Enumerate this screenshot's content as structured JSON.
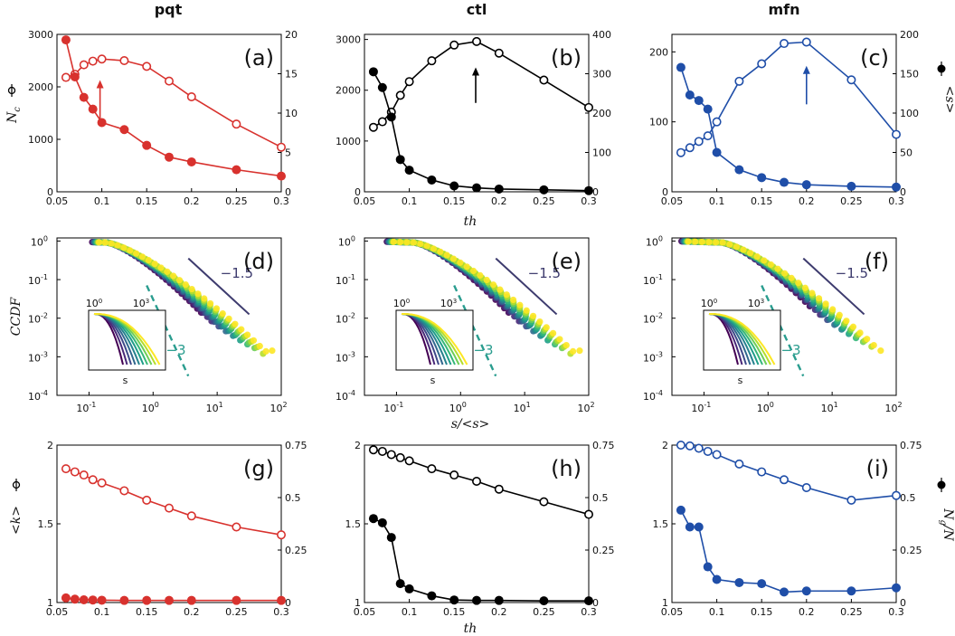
{
  "columns": [
    {
      "title": "pqt",
      "color": "#d8322e"
    },
    {
      "title": "ctl",
      "color": "#000000"
    },
    {
      "title": "mfn",
      "color": "#1f4ea8"
    }
  ],
  "axis_text": {
    "nc_label": "N",
    "nc_sub": "c",
    "s_label": "<s>",
    "th_label": "th",
    "ccdf_label": "CCDF",
    "sratio_label": "s/<s>",
    "k_label": "<k>",
    "ng_label": "N",
    "ng_sub": "g",
    "ng_tail": "/N",
    "inset_x_label": "s"
  },
  "annotations": {
    "slope_a": "−1.5",
    "slope_b": "−3"
  },
  "viridis": [
    "#440154",
    "#482878",
    "#3e4989",
    "#31688e",
    "#26828e",
    "#1f9e89",
    "#35b779",
    "#6ece58",
    "#b5de2b",
    "#fde725"
  ],
  "chart_data": [
    {
      "panel": "(a)",
      "type": "line",
      "xlim": [
        0.05,
        0.3
      ],
      "xticks": [
        "0.05",
        "0.1",
        "0.15",
        "0.2",
        "0.25",
        "0.3"
      ],
      "ylim_left": [
        0,
        3000
      ],
      "yticks_left": [
        "0",
        "1000",
        "2000",
        "3000"
      ],
      "ylim_right": [
        0,
        20
      ],
      "yticks_right": [
        "0",
        "5",
        "10",
        "15",
        "20"
      ],
      "x": [
        0.06,
        0.07,
        0.08,
        0.09,
        0.1,
        0.125,
        0.15,
        0.175,
        0.2,
        0.25,
        0.3
      ],
      "series": [
        {
          "name": "N_c",
          "axis": "left",
          "marker": "open",
          "values": [
            2180,
            2240,
            2420,
            2490,
            2530,
            2500,
            2390,
            2110,
            1810,
            1290,
            850
          ]
        },
        {
          "name": "<s>",
          "axis": "right",
          "marker": "filled",
          "values": [
            19.3,
            14.6,
            12.0,
            10.5,
            8.8,
            7.9,
            5.9,
            4.4,
            3.8,
            2.8,
            2.0
          ]
        }
      ],
      "arrow_x": 0.098,
      "arrow_y": [
        1330,
        2130
      ]
    },
    {
      "panel": "(b)",
      "type": "line",
      "xlim": [
        0.05,
        0.3
      ],
      "xticks": [
        "0.05",
        "0.1",
        "0.15",
        "0.2",
        "0.25",
        "0.3"
      ],
      "ylim_left": [
        0,
        3100
      ],
      "yticks_left": [
        "0",
        "1000",
        "2000",
        "3000"
      ],
      "ylim_right": [
        0,
        400
      ],
      "yticks_right": [
        "0",
        "100",
        "200",
        "300",
        "400"
      ],
      "x": [
        0.06,
        0.07,
        0.08,
        0.09,
        0.1,
        0.125,
        0.15,
        0.175,
        0.2,
        0.25,
        0.3
      ],
      "series": [
        {
          "name": "N_c",
          "axis": "left",
          "marker": "open",
          "values": [
            1270,
            1380,
            1570,
            1900,
            2170,
            2580,
            2890,
            2960,
            2730,
            2200,
            1660
          ]
        },
        {
          "name": "<s>",
          "axis": "right",
          "marker": "filled",
          "values": [
            305,
            265,
            190,
            82,
            55,
            30,
            15,
            10,
            7,
            5,
            3
          ]
        }
      ],
      "arrow_x": 0.174,
      "arrow_y": [
        1750,
        2450
      ]
    },
    {
      "panel": "(c)",
      "type": "line",
      "xlim": [
        0.05,
        0.3
      ],
      "xticks": [
        "0.05",
        "0.1",
        "0.15",
        "0.2",
        "0.25",
        "0.3"
      ],
      "ylim_left": [
        0,
        225
      ],
      "yticks_left": [
        "0",
        "100",
        "200"
      ],
      "ylim_right": [
        0,
        200
      ],
      "yticks_right": [
        "0",
        "50",
        "100",
        "150",
        "200"
      ],
      "x": [
        0.06,
        0.07,
        0.08,
        0.09,
        0.1,
        0.125,
        0.15,
        0.175,
        0.2,
        0.25,
        0.3
      ],
      "series": [
        {
          "name": "N_c",
          "axis": "left",
          "marker": "open",
          "values": [
            56,
            63,
            72,
            80,
            100,
            158,
            183,
            212,
            214,
            160,
            82
          ]
        },
        {
          "name": "<s>",
          "axis": "right",
          "marker": "filled",
          "values": [
            158,
            123,
            116,
            105,
            50,
            28,
            18,
            12,
            9,
            7,
            6
          ]
        }
      ],
      "arrow_x": 0.2,
      "arrow_y": [
        125,
        180
      ]
    },
    {
      "panel": "(d)",
      "type": "scatter",
      "xscale": "log",
      "yscale": "log",
      "xticks": [
        "10",
        "10",
        "10",
        "10"
      ],
      "xexp": [
        "-1",
        "0",
        "1",
        "2"
      ],
      "yticks": [
        "10",
        "10",
        "10",
        "10",
        "10"
      ],
      "yexp": [
        "0",
        "-1",
        "-2",
        "-3",
        "-4"
      ],
      "slope_b_label": "−3",
      "slope_a_label": "−1.5",
      "inset_ticks": [
        "10",
        "10"
      ],
      "inset_exp": [
        "0",
        "3"
      ]
    },
    {
      "panel": "(e)",
      "type": "scatter",
      "xscale": "log",
      "yscale": "log",
      "xticks": [
        "10",
        "10",
        "10",
        "10"
      ],
      "xexp": [
        "-1",
        "0",
        "1",
        "2"
      ],
      "yticks": [
        "10",
        "10",
        "10",
        "10",
        "10"
      ],
      "yexp": [
        "0",
        "-1",
        "-2",
        "-3",
        "-4"
      ],
      "slope_b_label": "−3",
      "slope_a_label": "−1.5",
      "inset_ticks": [
        "10",
        "10"
      ],
      "inset_exp": [
        "0",
        "3"
      ]
    },
    {
      "panel": "(f)",
      "type": "scatter",
      "xscale": "log",
      "yscale": "log",
      "xticks": [
        "10",
        "10",
        "10",
        "10"
      ],
      "xexp": [
        "-1",
        "0",
        "1",
        "2"
      ],
      "yticks": [
        "10",
        "10",
        "10",
        "10",
        "10"
      ],
      "yexp": [
        "0",
        "-1",
        "-2",
        "-3",
        "-4"
      ],
      "slope_b_label": "−3",
      "slope_a_label": "−1.5",
      "inset_ticks": [
        "10",
        "10"
      ],
      "inset_exp": [
        "0",
        "3"
      ]
    },
    {
      "panel": "(g)",
      "type": "line",
      "xlim": [
        0.05,
        0.3
      ],
      "xticks": [
        "0.05",
        "0.1",
        "0.15",
        "0.2",
        "0.25",
        "0.3"
      ],
      "ylim_left": [
        1,
        2
      ],
      "yticks_left": [
        "1",
        "1.5",
        "2"
      ],
      "ylim_right": [
        0,
        0.75
      ],
      "yticks_right": [
        "0",
        "0.25",
        "0.5",
        "0.75"
      ],
      "x": [
        0.06,
        0.07,
        0.08,
        0.09,
        0.1,
        0.125,
        0.15,
        0.175,
        0.2,
        0.25,
        0.3
      ],
      "series": [
        {
          "name": "<k>",
          "axis": "left",
          "marker": "open",
          "values": [
            1.85,
            1.83,
            1.81,
            1.78,
            1.76,
            1.71,
            1.65,
            1.6,
            1.55,
            1.48,
            1.43
          ]
        },
        {
          "name": "N_g/N",
          "axis": "right",
          "marker": "filled",
          "values": [
            0.022,
            0.016,
            0.013,
            0.012,
            0.011,
            0.01,
            0.01,
            0.01,
            0.01,
            0.01,
            0.01
          ]
        }
      ]
    },
    {
      "panel": "(h)",
      "type": "line",
      "xlim": [
        0.05,
        0.3
      ],
      "xticks": [
        "0.05",
        "0.1",
        "0.15",
        "0.2",
        "0.25",
        "0.3"
      ],
      "ylim_left": [
        1,
        2
      ],
      "yticks_left": [
        "1",
        "1.5",
        "2"
      ],
      "ylim_right": [
        0,
        0.75
      ],
      "yticks_right": [
        "0",
        "0.25",
        "0.5",
        "0.75"
      ],
      "x": [
        0.06,
        0.07,
        0.08,
        0.09,
        0.1,
        0.125,
        0.15,
        0.175,
        0.2,
        0.25,
        0.3
      ],
      "series": [
        {
          "name": "<k>",
          "axis": "left",
          "marker": "open",
          "values": [
            1.97,
            1.96,
            1.94,
            1.92,
            1.9,
            1.85,
            1.81,
            1.77,
            1.72,
            1.64,
            1.56
          ]
        },
        {
          "name": "N_g/N",
          "axis": "right",
          "marker": "filled",
          "values": [
            0.4,
            0.38,
            0.31,
            0.09,
            0.065,
            0.032,
            0.012,
            0.01,
            0.01,
            0.008,
            0.008
          ]
        }
      ]
    },
    {
      "panel": "(i)",
      "type": "line",
      "xlim": [
        0.05,
        0.3
      ],
      "xticks": [
        "0.05",
        "0.1",
        "0.15",
        "0.2",
        "0.25",
        "0.3"
      ],
      "ylim_left": [
        1,
        2
      ],
      "yticks_left": [
        "1",
        "1.5",
        "2"
      ],
      "ylim_right": [
        0,
        0.75
      ],
      "yticks_right": [
        "0",
        "0.25",
        "0.5",
        "0.75"
      ],
      "x": [
        0.06,
        0.07,
        0.08,
        0.09,
        0.1,
        0.125,
        0.15,
        0.175,
        0.2,
        0.25,
        0.3
      ],
      "series": [
        {
          "name": "<k>",
          "axis": "left",
          "marker": "open",
          "values": [
            2.0,
            1.995,
            1.98,
            1.96,
            1.94,
            1.88,
            1.83,
            1.78,
            1.73,
            1.65,
            1.68
          ]
        },
        {
          "name": "N_g/N",
          "axis": "right",
          "marker": "filled",
          "values": [
            0.44,
            0.36,
            0.36,
            0.17,
            0.11,
            0.095,
            0.09,
            0.05,
            0.055,
            0.055,
            0.07
          ]
        }
      ]
    }
  ]
}
